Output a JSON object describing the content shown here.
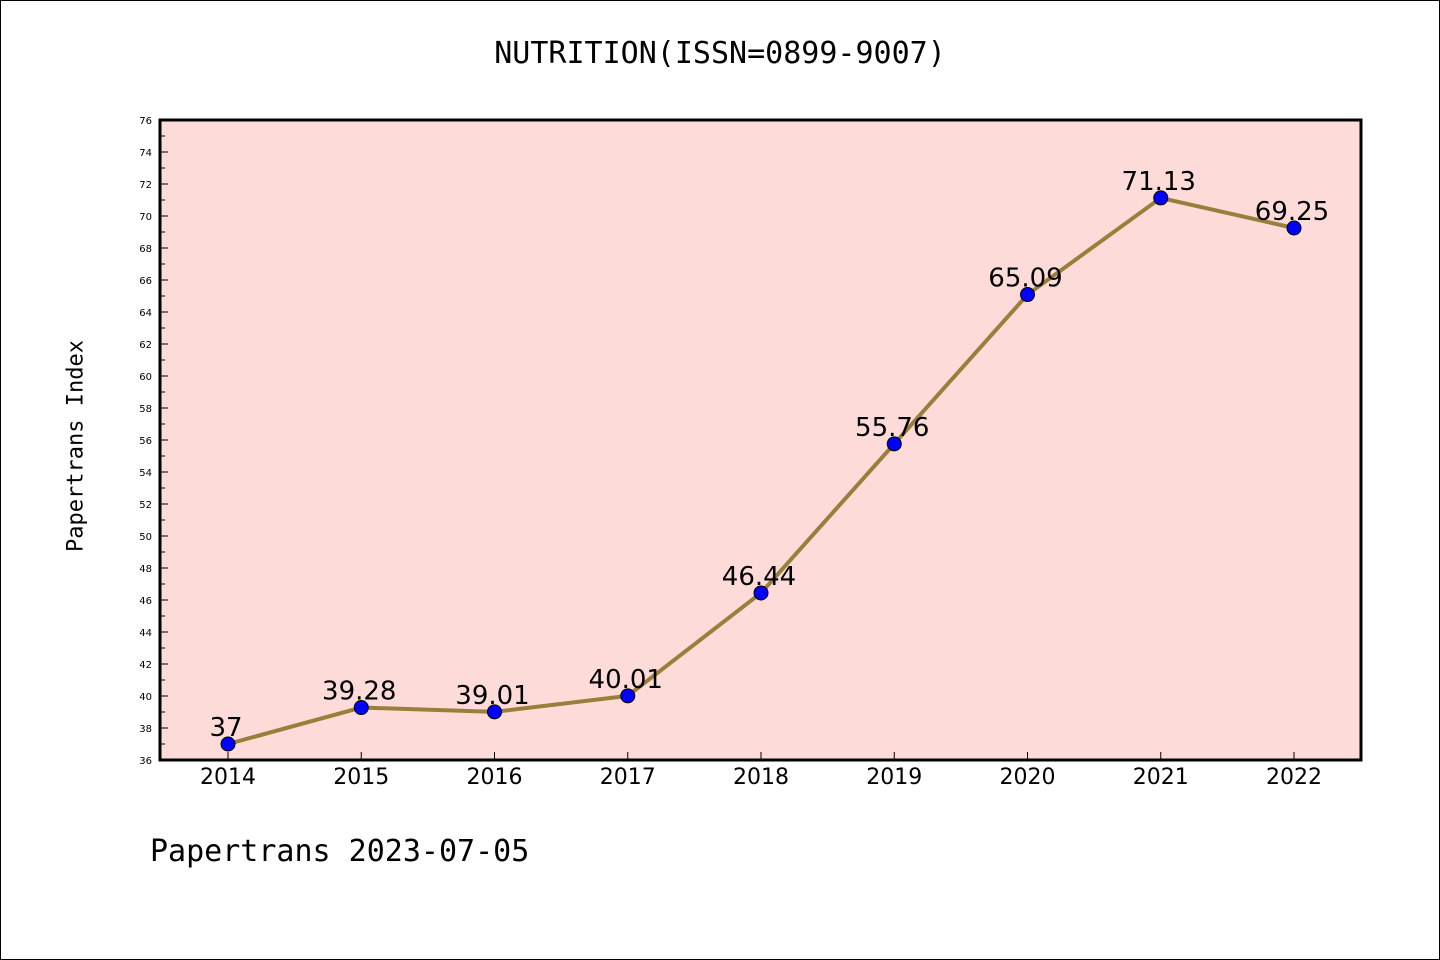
{
  "title": "NUTRITION(ISSN=0899-9007)",
  "footer": "Papertrans 2023-07-05",
  "colors": {
    "plot_background": "#fddbd9",
    "line": "#9a7f3a",
    "marker": "#0000ff"
  },
  "chart_data": {
    "type": "line",
    "title": "NUTRITION(ISSN=0899-9007)",
    "xlabel": "",
    "ylabel": "Papertrans Index",
    "categories": [
      "2014",
      "2015",
      "2016",
      "2017",
      "2018",
      "2019",
      "2020",
      "2021",
      "2022"
    ],
    "series": [
      {
        "values": [
          37,
          39.28,
          39.01,
          40.01,
          46.44,
          55.76,
          65.09,
          71.13,
          69.25
        ],
        "labels": [
          "37",
          "39.28",
          "39.01",
          "40.01",
          "46.44",
          "55.76",
          "65.09",
          "71.13",
          "69.25"
        ]
      }
    ],
    "ylim": [
      36,
      76
    ],
    "yticks": [
      "36",
      "38",
      "40",
      "42",
      "44",
      "46",
      "48",
      "50",
      "52",
      "54",
      "56",
      "58",
      "60",
      "62",
      "64",
      "66",
      "68",
      "70",
      "72",
      "74",
      "76"
    ],
    "grid": false,
    "legend": "none"
  }
}
